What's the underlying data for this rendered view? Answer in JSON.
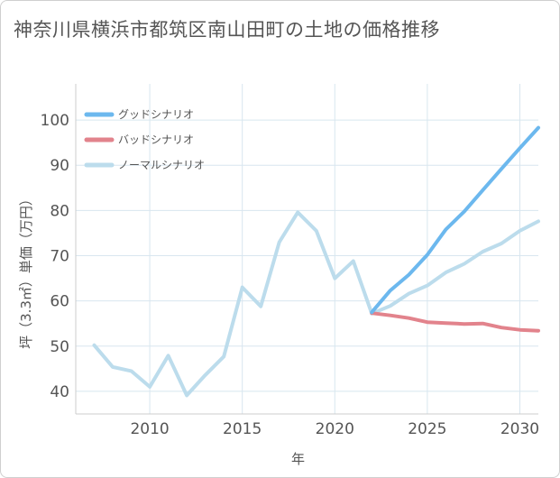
{
  "title": "神奈川県横浜市都筑区南山田町の土地の価格推移",
  "chart_data": {
    "type": "line",
    "title": "神奈川県横浜市都筑区南山田町の土地の価格推移",
    "xlabel": "年",
    "ylabel": "坪（3.3㎡）単価（万円）",
    "xlim": [
      2006,
      2031
    ],
    "ylim": [
      35,
      108
    ],
    "xticks": [
      2010,
      2015,
      2020,
      2025,
      2030
    ],
    "yticks": [
      40,
      50,
      60,
      70,
      80,
      90,
      100
    ],
    "grid": true,
    "legend_position": "top-left",
    "series": [
      {
        "name": "グッドシナリオ",
        "color": "#6cb8ee",
        "x": [
          2022,
          2023,
          2024,
          2025,
          2026,
          2027,
          2028,
          2029,
          2030,
          2031
        ],
        "y": [
          57.5,
          62.3,
          65.8,
          70.2,
          75.8,
          79.8,
          84.5,
          89.2,
          93.8,
          98.3
        ]
      },
      {
        "name": "バッドシナリオ",
        "color": "#e2838c",
        "x": [
          2022,
          2023,
          2024,
          2025,
          2026,
          2027,
          2028,
          2029,
          2030,
          2031
        ],
        "y": [
          57.3,
          56.8,
          56.2,
          55.3,
          55.1,
          54.9,
          55.0,
          54.1,
          53.6,
          53.4
        ]
      },
      {
        "name": "ノーマルシナリオ",
        "color": "#bcdcec",
        "x": [
          2007,
          2008,
          2009,
          2010,
          2011,
          2012,
          2013,
          2014,
          2015,
          2016,
          2017,
          2018,
          2019,
          2020,
          2021,
          2022,
          2023,
          2024,
          2025,
          2026,
          2027,
          2028,
          2029,
          2030,
          2031
        ],
        "y": [
          50.2,
          45.4,
          44.5,
          41.0,
          47.9,
          39.1,
          43.6,
          47.7,
          63.0,
          58.8,
          73.0,
          79.6,
          75.5,
          65.0,
          68.8,
          57.2,
          58.9,
          61.6,
          63.4,
          66.3,
          68.2,
          70.9,
          72.7,
          75.5,
          77.6
        ]
      }
    ]
  }
}
